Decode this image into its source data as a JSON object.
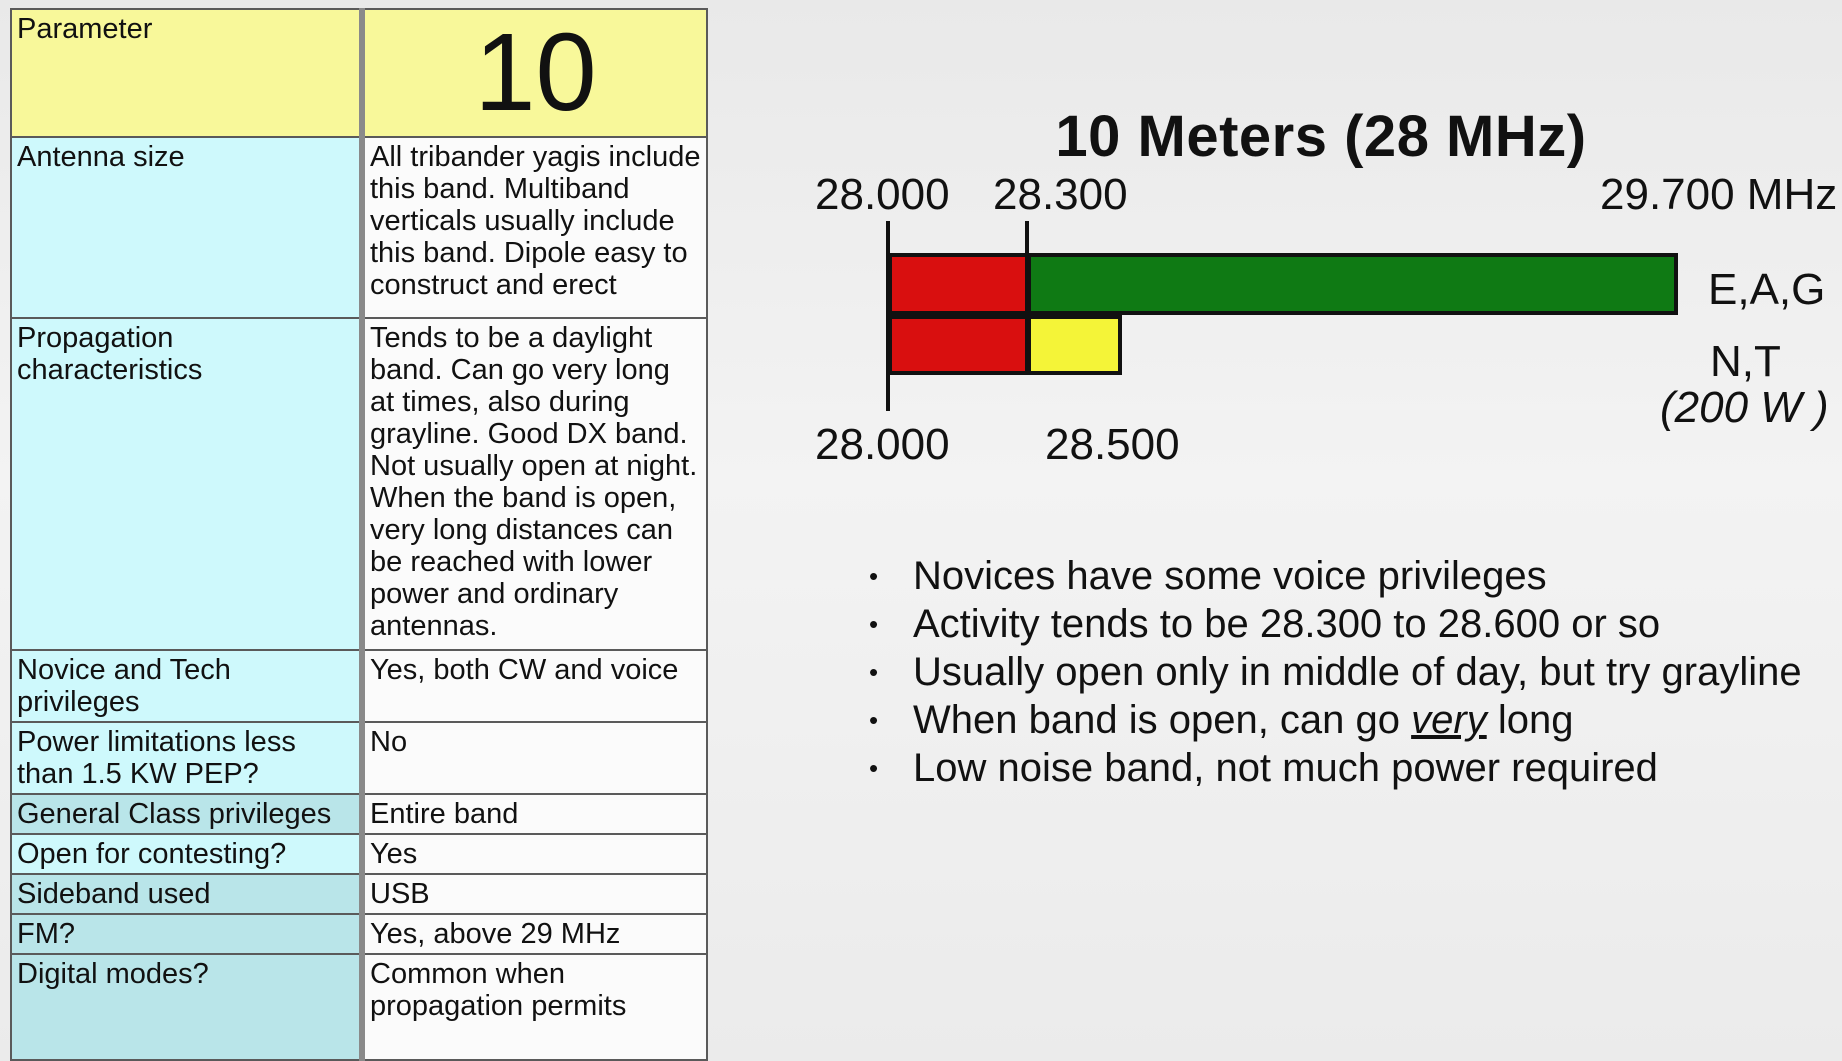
{
  "table": {
    "header": {
      "label": "Parameter",
      "value": "10"
    },
    "rows": [
      {
        "label": "Antenna size",
        "value": "All tribander yagis include this band. Multiband verticals usually include this band. Dipole easy to construct and erect"
      },
      {
        "label": "Propagation characteristics",
        "value": "Tends to be a daylight band. Can go very long at times, also during grayline. Good DX band. Not usually open at night. When the band is open, very long distances can be reached with lower power and ordinary antennas."
      },
      {
        "label": "Novice and Tech privileges",
        "value": "Yes, both CW and voice"
      },
      {
        "label": "Power limitations less than 1.5 KW PEP?",
        "value": "No"
      },
      {
        "label": "General Class privileges",
        "value": "Entire band"
      },
      {
        "label": "Open for contesting?",
        "value": "Yes"
      },
      {
        "label": "Sideband used",
        "value": "USB"
      },
      {
        "label": "FM?",
        "value": "Yes, above 29 MHz"
      },
      {
        "label": "Digital modes?",
        "value": "Common when propagation permits"
      }
    ]
  },
  "chart_data": {
    "type": "bar",
    "title": "10 Meters (28 MHz)",
    "unit": "MHz",
    "top_labels": [
      "28.000",
      "28.300",
      "29.700 MHz"
    ],
    "bottom_labels": [
      "28.000",
      "28.500"
    ],
    "series": [
      {
        "name": "E,A,G",
        "segments": [
          {
            "start": 28.0,
            "end": 28.3,
            "color": "#d90f0f"
          },
          {
            "start": 28.3,
            "end": 29.7,
            "color": "#0f7a14"
          }
        ]
      },
      {
        "name": "N,T",
        "note": "(200 W )",
        "segments": [
          {
            "start": 28.0,
            "end": 28.3,
            "color": "#d90f0f"
          },
          {
            "start": 28.3,
            "end": 28.5,
            "color": "#f4f438"
          }
        ]
      }
    ]
  },
  "bullets": [
    {
      "text": "Novices have some voice privileges"
    },
    {
      "text": "Activity tends to be 28.300 to 28.600 or so"
    },
    {
      "text": "Usually open only in middle of day, but try grayline"
    },
    {
      "pre": "When band is open, can go ",
      "em": "very",
      "post": " long"
    },
    {
      "text": "Low noise band, not much power required"
    }
  ]
}
